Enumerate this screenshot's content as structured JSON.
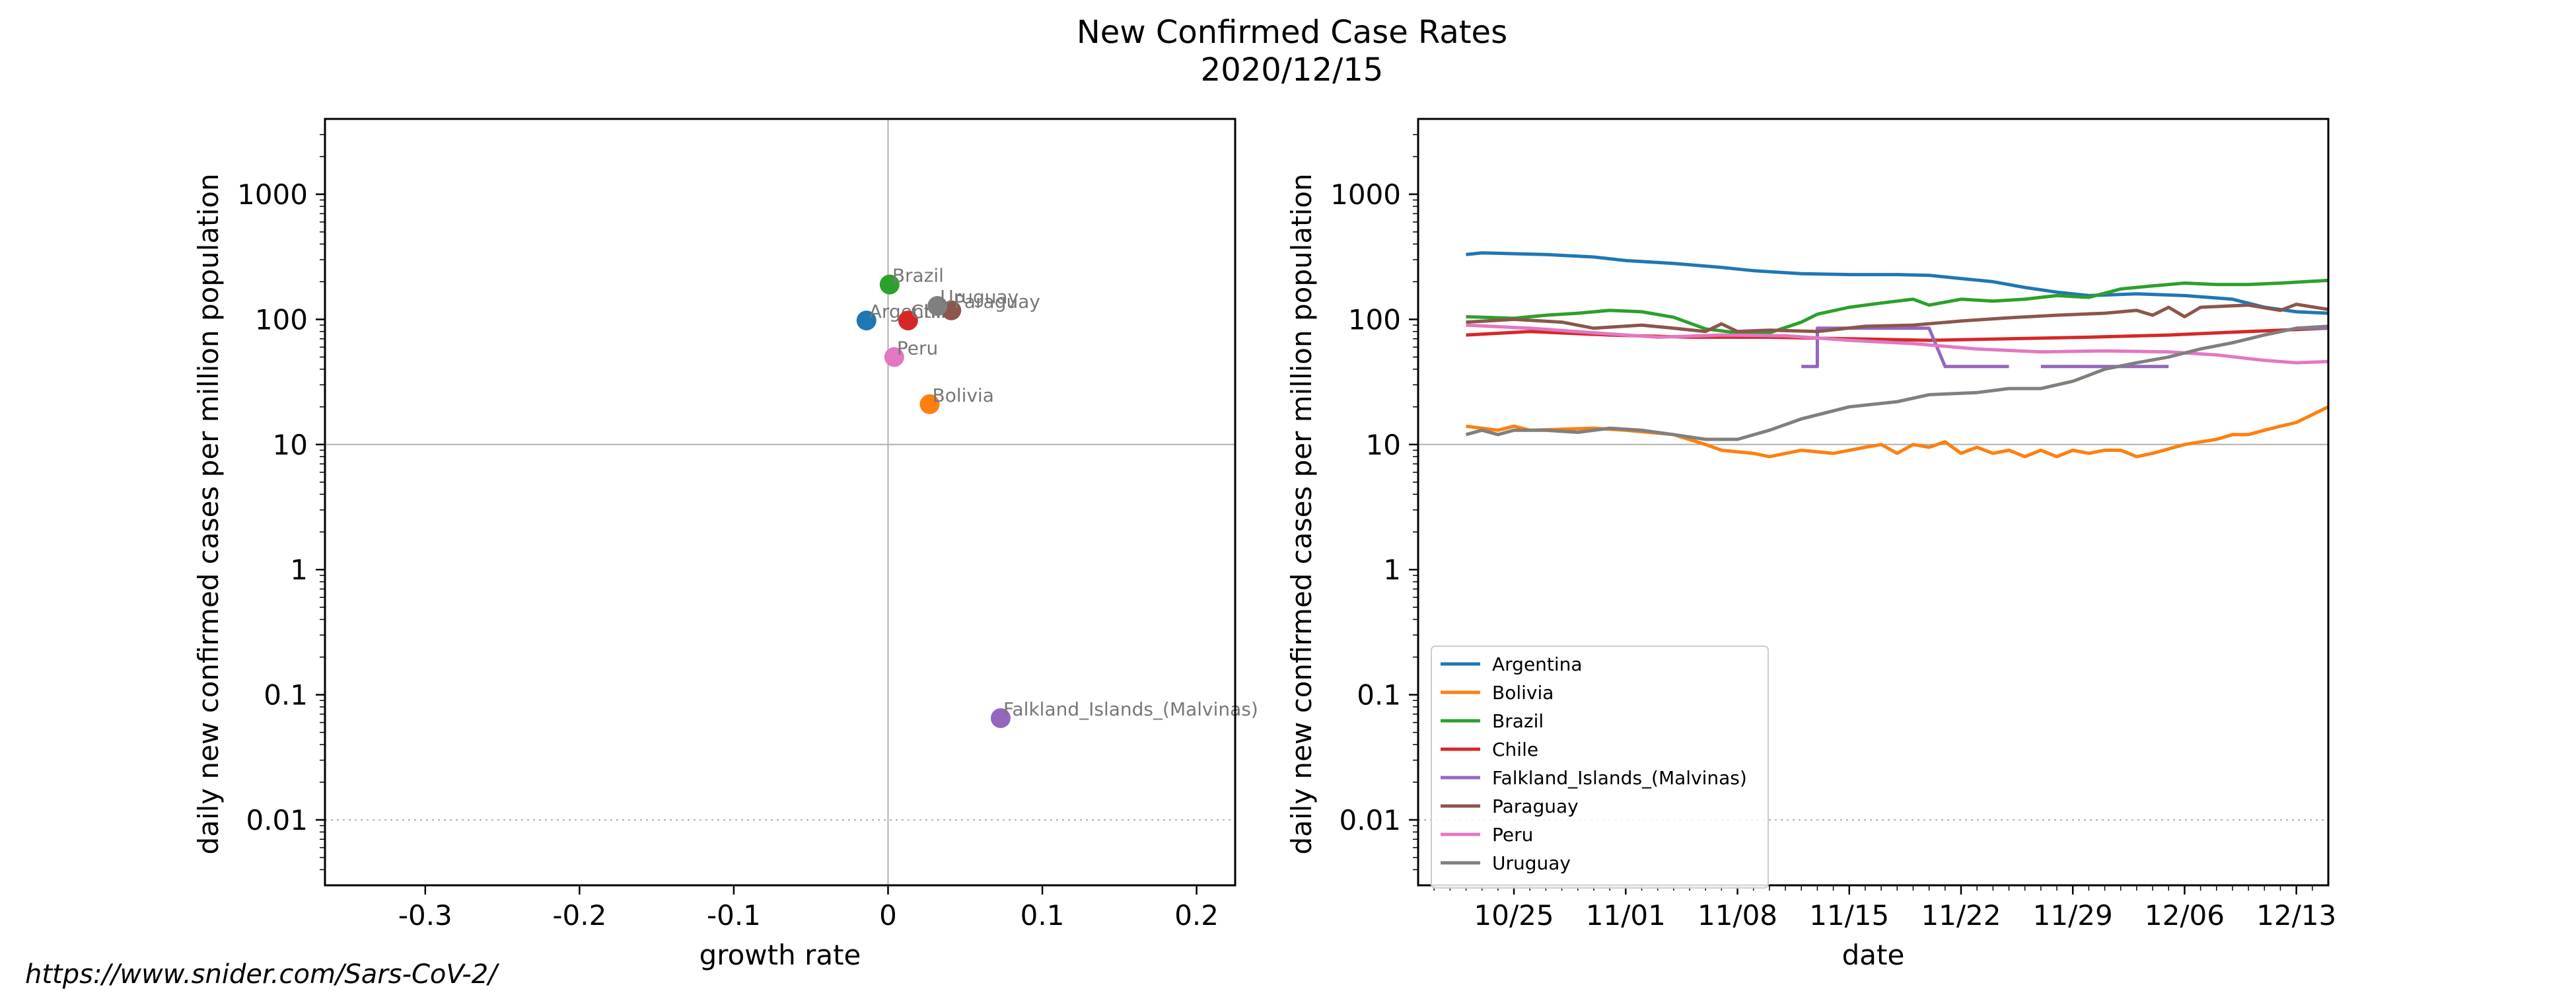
{
  "source": "https://www.snider.com/Sars-CoV-2/",
  "colors": {
    "Argentina": "#1f77b4",
    "Bolivia": "#ff7f0e",
    "Brazil": "#2ca02c",
    "Chile": "#d62728",
    "Falkland_Islands_(Malvinas)": "#9467bd",
    "Paraguay": "#8c564b",
    "Peru": "#e377c2",
    "Uruguay": "#7f7f7f"
  },
  "chart_data": [
    {
      "type": "scatter",
      "title": "New Confirmed Case Rates",
      "subtitle": "2020/12/15",
      "xlabel": "growth rate",
      "ylabel": "daily new confirmed cases per million population",
      "xscale": "linear",
      "yscale": "log",
      "xlim": [
        -0.365,
        0.225
      ],
      "ylim": [
        0.003,
        4000
      ],
      "xticks": [
        -0.3,
        -0.2,
        -0.1,
        0,
        0.1,
        0.2
      ],
      "xticklabels": [
        "-0.3",
        "-0.2",
        "-0.1",
        "0",
        "0.1",
        "0.2"
      ],
      "yticks": [
        0.01,
        0.1,
        1,
        10,
        100,
        1000
      ],
      "yticklabels": [
        "0.01",
        "0.1",
        "1",
        "10",
        "100",
        "1000"
      ],
      "reference_lines": {
        "x": 0,
        "y": 10,
        "y_dotted": 0.01
      },
      "points": [
        {
          "name": "Argentina",
          "x": -0.014,
          "y": 98
        },
        {
          "name": "Bolivia",
          "x": 0.027,
          "y": 21
        },
        {
          "name": "Brazil",
          "x": 0.001,
          "y": 190
        },
        {
          "name": "Chile",
          "x": 0.013,
          "y": 98
        },
        {
          "name": "Falkland_Islands_(Malvinas)",
          "x": 0.073,
          "y": 0.065
        },
        {
          "name": "Paraguay",
          "x": 0.041,
          "y": 118
        },
        {
          "name": "Peru",
          "x": 0.004,
          "y": 50
        },
        {
          "name": "Uruguay",
          "x": 0.032,
          "y": 128
        }
      ],
      "point_labels": [
        "Argentina",
        "Bolivia",
        "Brazil",
        "Chile",
        "Falkland_Islands_(Malvinas)",
        "Paraguay",
        "Peru",
        "Uruguay"
      ]
    },
    {
      "type": "line",
      "xlabel": "date",
      "ylabel": "daily new confirmed cases per million population",
      "yscale": "log",
      "xlim": [
        "2020-10-19",
        "2020-12-15"
      ],
      "ylim": [
        0.003,
        4000
      ],
      "xticks": [
        "2020-10-25",
        "2020-11-01",
        "2020-11-08",
        "2020-11-15",
        "2020-11-22",
        "2020-11-29",
        "2020-12-06",
        "2020-12-13"
      ],
      "xticklabels": [
        "10/25",
        "11/01",
        "11/08",
        "11/15",
        "11/22",
        "11/29",
        "12/06",
        "12/13"
      ],
      "yticks": [
        0.01,
        0.1,
        1,
        10,
        100,
        1000
      ],
      "yticklabels": [
        "0.01",
        "0.1",
        "1",
        "10",
        "100",
        "1000"
      ],
      "reference_lines": {
        "y": 10,
        "y_dotted": 0.01
      },
      "legend_position": "lower-left",
      "series": [
        {
          "name": "Argentina",
          "points": [
            [
              "2020-10-22",
              330
            ],
            [
              "2020-10-23",
              340
            ],
            [
              "2020-10-27",
              330
            ],
            [
              "2020-10-30",
              315
            ],
            [
              "2020-11-01",
              295
            ],
            [
              "2020-11-04",
              280
            ],
            [
              "2020-11-07",
              260
            ],
            [
              "2020-11-09",
              245
            ],
            [
              "2020-11-12",
              232
            ],
            [
              "2020-11-15",
              228
            ],
            [
              "2020-11-18",
              228
            ],
            [
              "2020-11-20",
              225
            ],
            [
              "2020-11-22",
              212
            ],
            [
              "2020-11-24",
              200
            ],
            [
              "2020-11-26",
              180
            ],
            [
              "2020-11-28",
              165
            ],
            [
              "2020-11-30",
              155
            ],
            [
              "2020-12-03",
              160
            ],
            [
              "2020-12-06",
              155
            ],
            [
              "2020-12-09",
              145
            ],
            [
              "2020-12-11",
              125
            ],
            [
              "2020-12-13",
              115
            ],
            [
              "2020-12-15",
              112
            ]
          ]
        },
        {
          "name": "Bolivia",
          "points": [
            [
              "2020-10-22",
              14
            ],
            [
              "2020-10-24",
              13
            ],
            [
              "2020-10-25",
              14
            ],
            [
              "2020-10-26",
              13
            ],
            [
              "2020-10-30",
              13.5
            ],
            [
              "2020-11-01",
              13
            ],
            [
              "2020-11-04",
              12
            ],
            [
              "2020-11-06",
              10
            ],
            [
              "2020-11-07",
              9
            ],
            [
              "2020-11-09",
              8.5
            ],
            [
              "2020-11-10",
              8
            ],
            [
              "2020-11-12",
              9
            ],
            [
              "2020-11-14",
              8.5
            ],
            [
              "2020-11-16",
              9.5
            ],
            [
              "2020-11-17",
              10
            ],
            [
              "2020-11-18",
              8.5
            ],
            [
              "2020-11-19",
              10
            ],
            [
              "2020-11-20",
              9.5
            ],
            [
              "2020-11-21",
              10.5
            ],
            [
              "2020-11-22",
              8.5
            ],
            [
              "2020-11-23",
              9.5
            ],
            [
              "2020-11-24",
              8.5
            ],
            [
              "2020-11-25",
              9
            ],
            [
              "2020-11-26",
              8
            ],
            [
              "2020-11-27",
              9
            ],
            [
              "2020-11-28",
              8
            ],
            [
              "2020-11-29",
              9
            ],
            [
              "2020-11-30",
              8.5
            ],
            [
              "2020-12-01",
              9
            ],
            [
              "2020-12-02",
              9
            ],
            [
              "2020-12-03",
              8
            ],
            [
              "2020-12-04",
              8.5
            ],
            [
              "2020-12-06",
              10
            ],
            [
              "2020-12-07",
              10.5
            ],
            [
              "2020-12-08",
              11
            ],
            [
              "2020-12-09",
              12
            ],
            [
              "2020-12-10",
              12
            ],
            [
              "2020-12-11",
              13
            ],
            [
              "2020-12-12",
              14
            ],
            [
              "2020-12-13",
              15
            ],
            [
              "2020-12-15",
              20
            ]
          ]
        },
        {
          "name": "Brazil",
          "points": [
            [
              "2020-10-22",
              105
            ],
            [
              "2020-10-25",
              102
            ],
            [
              "2020-10-27",
              108
            ],
            [
              "2020-10-29",
              112
            ],
            [
              "2020-10-31",
              118
            ],
            [
              "2020-11-02",
              115
            ],
            [
              "2020-11-04",
              104
            ],
            [
              "2020-11-06",
              84
            ],
            [
              "2020-11-08",
              78
            ],
            [
              "2020-11-10",
              78
            ],
            [
              "2020-11-12",
              95
            ],
            [
              "2020-11-13",
              110
            ],
            [
              "2020-11-15",
              125
            ],
            [
              "2020-11-17",
              135
            ],
            [
              "2020-11-19",
              145
            ],
            [
              "2020-11-20",
              130
            ],
            [
              "2020-11-22",
              145
            ],
            [
              "2020-11-24",
              140
            ],
            [
              "2020-11-26",
              145
            ],
            [
              "2020-11-28",
              155
            ],
            [
              "2020-11-30",
              150
            ],
            [
              "2020-12-02",
              175
            ],
            [
              "2020-12-04",
              185
            ],
            [
              "2020-12-06",
              195
            ],
            [
              "2020-12-08",
              190
            ],
            [
              "2020-12-10",
              190
            ],
            [
              "2020-12-12",
              195
            ],
            [
              "2020-12-15",
              205
            ]
          ]
        },
        {
          "name": "Chile",
          "points": [
            [
              "2020-10-22",
              75
            ],
            [
              "2020-10-26",
              80
            ],
            [
              "2020-10-31",
              75
            ],
            [
              "2020-11-05",
              72
            ],
            [
              "2020-11-10",
              72
            ],
            [
              "2020-11-15",
              70
            ],
            [
              "2020-11-20",
              68
            ],
            [
              "2020-11-25",
              70
            ],
            [
              "2020-11-30",
              72
            ],
            [
              "2020-12-05",
              75
            ],
            [
              "2020-12-10",
              80
            ],
            [
              "2020-12-15",
              85
            ]
          ]
        },
        {
          "name": "Falkland_Islands_(Malvinas)",
          "points": [
            [
              "2020-11-12",
              42
            ],
            [
              "2020-11-13",
              42
            ],
            [
              "2020-11-13",
              85
            ],
            [
              "2020-11-20",
              85
            ],
            [
              "2020-11-21",
              42
            ],
            [
              "2020-11-25",
              42
            ],
            [
              "2020-11-27",
              null
            ],
            [
              "2020-11-27",
              42
            ],
            [
              "2020-12-05",
              42
            ],
            [
              "2020-12-06",
              null
            ],
            [
              "2020-12-12",
              null
            ],
            [
              "2020-12-13",
              85
            ],
            [
              "2020-12-15",
              85
            ]
          ]
        },
        {
          "name": "Paraguay",
          "points": [
            [
              "2020-10-22",
              95
            ],
            [
              "2020-10-25",
              100
            ],
            [
              "2020-10-28",
              95
            ],
            [
              "2020-10-30",
              85
            ],
            [
              "2020-11-02",
              90
            ],
            [
              "2020-11-04",
              85
            ],
            [
              "2020-11-06",
              80
            ],
            [
              "2020-11-07",
              92
            ],
            [
              "2020-11-08",
              80
            ],
            [
              "2020-11-10",
              82
            ],
            [
              "2020-11-13",
              80
            ],
            [
              "2020-11-16",
              88
            ],
            [
              "2020-11-19",
              90
            ],
            [
              "2020-11-22",
              97
            ],
            [
              "2020-11-25",
              103
            ],
            [
              "2020-11-28",
              108
            ],
            [
              "2020-12-01",
              112
            ],
            [
              "2020-12-03",
              118
            ],
            [
              "2020-12-04",
              108
            ],
            [
              "2020-12-05",
              125
            ],
            [
              "2020-12-06",
              105
            ],
            [
              "2020-12-07",
              125
            ],
            [
              "2020-12-10",
              130
            ],
            [
              "2020-12-12",
              118
            ],
            [
              "2020-12-13",
              132
            ],
            [
              "2020-12-15",
              120
            ]
          ]
        },
        {
          "name": "Peru",
          "points": [
            [
              "2020-10-22",
              90
            ],
            [
              "2020-10-26",
              85
            ],
            [
              "2020-10-30",
              78
            ],
            [
              "2020-11-03",
              72
            ],
            [
              "2020-11-07",
              75
            ],
            [
              "2020-11-11",
              74
            ],
            [
              "2020-11-15",
              68
            ],
            [
              "2020-11-19",
              64
            ],
            [
              "2020-11-23",
              58
            ],
            [
              "2020-11-27",
              55
            ],
            [
              "2020-12-01",
              56
            ],
            [
              "2020-12-05",
              55
            ],
            [
              "2020-12-08",
              52
            ],
            [
              "2020-12-11",
              47
            ],
            [
              "2020-12-13",
              45
            ],
            [
              "2020-12-15",
              46
            ]
          ]
        },
        {
          "name": "Uruguay",
          "points": [
            [
              "2020-10-22",
              12
            ],
            [
              "2020-10-23",
              13
            ],
            [
              "2020-10-24",
              12
            ],
            [
              "2020-10-25",
              13
            ],
            [
              "2020-10-27",
              13
            ],
            [
              "2020-10-29",
              12.5
            ],
            [
              "2020-10-31",
              13.5
            ],
            [
              "2020-11-02",
              13
            ],
            [
              "2020-11-04",
              12
            ],
            [
              "2020-11-06",
              11
            ],
            [
              "2020-11-08",
              11
            ],
            [
              "2020-11-10",
              13
            ],
            [
              "2020-11-12",
              16
            ],
            [
              "2020-11-15",
              20
            ],
            [
              "2020-11-18",
              22
            ],
            [
              "2020-11-20",
              25
            ],
            [
              "2020-11-23",
              26
            ],
            [
              "2020-11-25",
              28
            ],
            [
              "2020-11-27",
              28
            ],
            [
              "2020-11-29",
              32
            ],
            [
              "2020-12-01",
              40
            ],
            [
              "2020-12-03",
              45
            ],
            [
              "2020-12-05",
              50
            ],
            [
              "2020-12-07",
              58
            ],
            [
              "2020-12-09",
              65
            ],
            [
              "2020-12-11",
              75
            ],
            [
              "2020-12-13",
              85
            ],
            [
              "2020-12-15",
              88
            ]
          ]
        }
      ]
    }
  ]
}
